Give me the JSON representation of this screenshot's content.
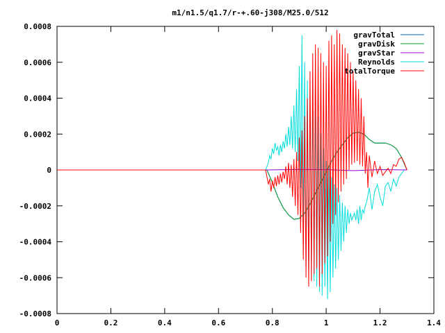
{
  "chart_data": {
    "type": "line",
    "title": "m1/n1.5/q1.7/r-+.60-j308/M25.0/512",
    "xlabel": "",
    "ylabel": "",
    "xlim": [
      0,
      1.4
    ],
    "ylim": [
      -0.0008,
      0.0008
    ],
    "x_ticks": [
      0,
      0.2,
      0.4,
      0.6,
      0.8,
      1,
      1.2,
      1.4
    ],
    "x_tick_labels": [
      "0",
      "0.2",
      "0.4",
      "0.6",
      "0.8",
      "1",
      "1.2",
      "1.4"
    ],
    "y_ticks": [
      -0.0008,
      -0.0006,
      -0.0004,
      -0.0002,
      0,
      0.0002,
      0.0004,
      0.0006,
      0.0008
    ],
    "y_tick_labels": [
      "-0.0008",
      "-0.0006",
      "-0.0004",
      "-0.0002",
      "0",
      "0.0002",
      "0.0004",
      "0.0006",
      "0.0008"
    ],
    "grid": false,
    "legend_position": "top-right",
    "series": [
      {
        "name": "gravTotal",
        "color": "#0060ad",
        "x": [
          0,
          0.78,
          0.8,
          0.82,
          0.84,
          0.86,
          0.88,
          0.9,
          0.92,
          0.94,
          0.96,
          0.98,
          1.0,
          1.02,
          1.04,
          1.06,
          1.08,
          1.1,
          1.12,
          1.14,
          1.16,
          1.18,
          1.2,
          1.22,
          1.24,
          1.26,
          1.28,
          1.3
        ],
        "y": [
          0,
          0,
          -7e-05,
          -0.00015,
          -0.00021,
          -0.00025,
          -0.000275,
          -0.00027,
          -0.00024,
          -0.00019,
          -0.00013,
          -7e-05,
          -1e-05,
          5e-05,
          0.0001,
          0.00014,
          0.00018,
          0.000205,
          0.00021,
          0.0002,
          0.00017,
          0.00015,
          0.00015,
          0.00015,
          0.00014,
          0.00012,
          7e-05,
          0
        ]
      },
      {
        "name": "gravDisk",
        "color": "#009e2e",
        "x": [
          0,
          0.78,
          0.8,
          0.82,
          0.84,
          0.86,
          0.88,
          0.9,
          0.92,
          0.94,
          0.96,
          0.98,
          1.0,
          1.02,
          1.04,
          1.06,
          1.08,
          1.1,
          1.12,
          1.14,
          1.16,
          1.18,
          1.2,
          1.22,
          1.24,
          1.26,
          1.28,
          1.3
        ],
        "y": [
          0,
          0,
          -7e-05,
          -0.00015,
          -0.00021,
          -0.00025,
          -0.000275,
          -0.00027,
          -0.00024,
          -0.00019,
          -0.00013,
          -7e-05,
          -1e-05,
          5e-05,
          0.0001,
          0.00014,
          0.00018,
          0.000205,
          0.00021,
          0.0002,
          0.00017,
          0.00015,
          0.00015,
          0.00015,
          0.00014,
          0.00012,
          7e-05,
          0
        ]
      },
      {
        "name": "gravStar",
        "color": "#9400d3",
        "x": [
          0,
          0.78,
          0.9,
          1.0,
          1.1,
          1.2,
          1.3
        ],
        "y": [
          0,
          0,
          3e-06,
          2e-06,
          -4e-06,
          2e-06,
          0
        ]
      },
      {
        "name": "Reynolds",
        "color": "#00dddd",
        "x": [
          0,
          0.775,
          0.785,
          0.79,
          0.795,
          0.8,
          0.805,
          0.81,
          0.815,
          0.82,
          0.825,
          0.83,
          0.835,
          0.84,
          0.845,
          0.85,
          0.855,
          0.86,
          0.865,
          0.87,
          0.875,
          0.88,
          0.885,
          0.89,
          0.895,
          0.9,
          0.905,
          0.91,
          0.915,
          0.92,
          0.925,
          0.93,
          0.935,
          0.94,
          0.945,
          0.95,
          0.955,
          0.96,
          0.965,
          0.97,
          0.975,
          0.98,
          0.985,
          0.99,
          0.995,
          1.0,
          1.005,
          1.01,
          1.015,
          1.02,
          1.025,
          1.03,
          1.035,
          1.04,
          1.045,
          1.05,
          1.055,
          1.06,
          1.065,
          1.07,
          1.075,
          1.08,
          1.085,
          1.09,
          1.095,
          1.1,
          1.105,
          1.11,
          1.115,
          1.12,
          1.125,
          1.13,
          1.135,
          1.14,
          1.145,
          1.15,
          1.16,
          1.17,
          1.18,
          1.19,
          1.2,
          1.21,
          1.22,
          1.23,
          1.24,
          1.25,
          1.26,
          1.27,
          1.28,
          1.29,
          1.3
        ],
        "y": [
          0,
          0,
          4e-05,
          8e-05,
          6e-05,
          0.00012,
          9e-05,
          0.00015,
          0.00011,
          0.00013,
          8e-05,
          0.00014,
          0.0001,
          0.00016,
          0.00012,
          0.0002,
          0.00013,
          0.00024,
          0.00014,
          0.0003,
          0.00012,
          0.00036,
          0.0001,
          0.00045,
          5e-05,
          0.00058,
          -0.0001,
          0.00075,
          -0.00035,
          0.0006,
          -0.00055,
          0.0005,
          -0.0006,
          0.00045,
          -0.0006,
          0.00042,
          -0.00062,
          0.0004,
          -0.00065,
          0.0003,
          -0.00068,
          0.0002,
          -0.0007,
          0.00012,
          -0.00065,
          5e-05,
          -0.00072,
          2e-05,
          -0.00068,
          -4e-05,
          -0.0006,
          -8e-05,
          -0.00055,
          -0.0001,
          -0.0005,
          -0.00014,
          -0.00045,
          -0.00018,
          -0.0004,
          -0.0002,
          -0.00035,
          -0.00022,
          -0.0003,
          -0.00024,
          -0.00028,
          -0.00026,
          -0.00024,
          -0.00028,
          -0.00022,
          -0.0003,
          -0.0002,
          -0.00028,
          -0.00022,
          -0.00024,
          -0.0002,
          -0.00018,
          -0.0001,
          -0.00022,
          -0.00012,
          -8e-05,
          -0.00015,
          -0.0002,
          -9e-05,
          -7e-05,
          -0.00012,
          -5e-05,
          -9e-05,
          -4e-05,
          -2e-05,
          0,
          0
        ]
      },
      {
        "name": "totalTorque",
        "color": "#ff0000",
        "x": [
          0,
          0.775,
          0.785,
          0.79,
          0.795,
          0.8,
          0.805,
          0.81,
          0.815,
          0.82,
          0.825,
          0.83,
          0.835,
          0.84,
          0.845,
          0.85,
          0.855,
          0.86,
          0.865,
          0.87,
          0.875,
          0.88,
          0.885,
          0.89,
          0.895,
          0.9,
          0.905,
          0.91,
          0.915,
          0.92,
          0.925,
          0.93,
          0.935,
          0.94,
          0.945,
          0.95,
          0.955,
          0.96,
          0.965,
          0.97,
          0.975,
          0.98,
          0.985,
          0.99,
          0.995,
          1.0,
          1.005,
          1.01,
          1.015,
          1.02,
          1.025,
          1.03,
          1.035,
          1.04,
          1.045,
          1.05,
          1.055,
          1.06,
          1.065,
          1.07,
          1.075,
          1.08,
          1.085,
          1.09,
          1.095,
          1.1,
          1.105,
          1.11,
          1.115,
          1.12,
          1.125,
          1.13,
          1.135,
          1.14,
          1.145,
          1.15,
          1.155,
          1.16,
          1.17,
          1.18,
          1.19,
          1.2,
          1.21,
          1.22,
          1.23,
          1.24,
          1.25,
          1.26,
          1.27,
          1.28,
          1.29,
          1.3
        ],
        "y": [
          0,
          0,
          -8e-05,
          -5e-05,
          -0.00012,
          -6e-05,
          -0.0001,
          -4e-05,
          -9e-05,
          -3e-05,
          -8e-05,
          -2e-05,
          -7e-05,
          -1e-05,
          -5e-05,
          2e-05,
          -8e-05,
          4e-05,
          -0.0001,
          3e-05,
          -0.00015,
          6e-05,
          -0.0002,
          0.0001,
          -0.00025,
          0.00018,
          -0.00035,
          0.00022,
          -0.0005,
          0.0003,
          -0.0006,
          0.0004,
          -0.00065,
          0.00055,
          -0.00062,
          0.00065,
          -0.00058,
          0.0007,
          -0.00055,
          0.00068,
          -0.00065,
          0.00065,
          -0.00058,
          0.0006,
          -0.00052,
          0.00058,
          -0.00048,
          0.00072,
          -0.0004,
          0.00075,
          -0.0003,
          0.0007,
          -0.00025,
          0.00078,
          -0.00018,
          0.00076,
          -0.00012,
          0.0007,
          -8e-05,
          0.00068,
          -5e-05,
          0.00065,
          0.0,
          0.0006,
          3e-05,
          0.00055,
          4e-05,
          0.0005,
          5e-05,
          0.00045,
          3e-05,
          0.0004,
          2e-05,
          0.0003,
          -2e-05,
          0.0001,
          -0.0001,
          8e-05,
          -4e-05,
          5e-05,
          -2e-05,
          2e-05,
          -3e-05,
          -1e-05,
          1e-05,
          -2e-05,
          3e-05,
          2e-05,
          6e-05,
          7e-05,
          4e-05,
          0
        ]
      }
    ]
  }
}
